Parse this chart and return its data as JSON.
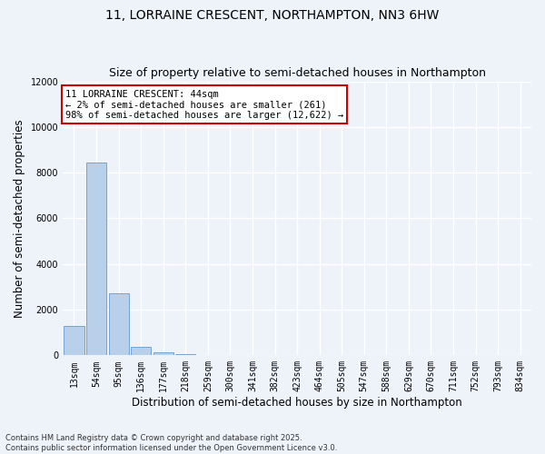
{
  "title_line1": "11, LORRAINE CRESCENT, NORTHAMPTON, NN3 6HW",
  "title_line2": "Size of property relative to semi-detached houses in Northampton",
  "xlabel": "Distribution of semi-detached houses by size in Northampton",
  "ylabel": "Number of semi-detached properties",
  "footnote": "Contains HM Land Registry data © Crown copyright and database right 2025.\nContains public sector information licensed under the Open Government Licence v3.0.",
  "annotation_title": "11 LORRAINE CRESCENT: 44sqm",
  "annotation_line1": "← 2% of semi-detached houses are smaller (261)",
  "annotation_line2": "98% of semi-detached houses are larger (12,622) →",
  "bar_categories": [
    "13sqm",
    "54sqm",
    "95sqm",
    "136sqm",
    "177sqm",
    "218sqm",
    "259sqm",
    "300sqm",
    "341sqm",
    "382sqm",
    "423sqm",
    "464sqm",
    "505sqm",
    "547sqm",
    "588sqm",
    "629sqm",
    "670sqm",
    "711sqm",
    "752sqm",
    "793sqm",
    "834sqm"
  ],
  "bar_values": [
    1300,
    8450,
    2700,
    380,
    150,
    50,
    0,
    0,
    0,
    0,
    0,
    0,
    0,
    0,
    0,
    0,
    0,
    0,
    0,
    0,
    0
  ],
  "bar_color": "#b8d0ea",
  "bar_edge_color": "#6699cc",
  "ylim": [
    0,
    12000
  ],
  "yticks": [
    0,
    2000,
    4000,
    6000,
    8000,
    10000,
    12000
  ],
  "background_color": "#eef2f9",
  "plot_background_color": "#eef2f9",
  "grid_color": "#ffffff",
  "annotation_box_color": "#ffffff",
  "annotation_box_edge_color": "#cc0000",
  "title_fontsize": 10,
  "subtitle_fontsize": 9,
  "axis_label_fontsize": 8.5,
  "tick_label_fontsize": 7,
  "annotation_fontsize": 7.5
}
